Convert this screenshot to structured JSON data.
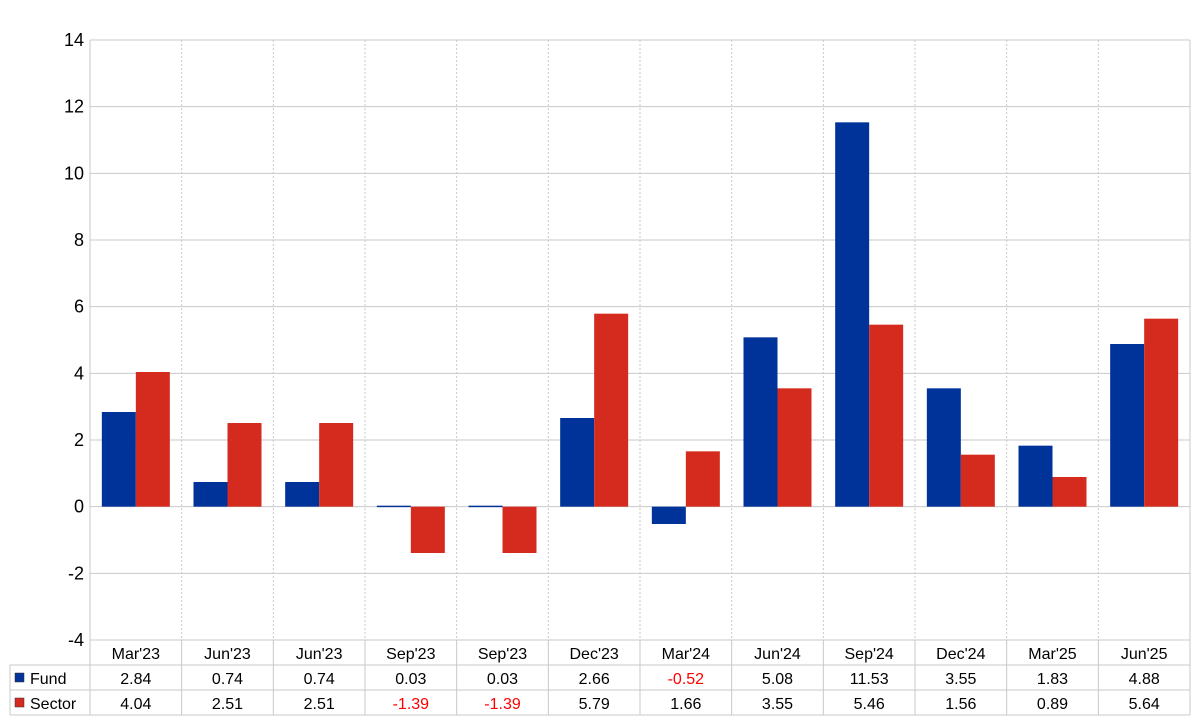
{
  "chart_data": {
    "type": "bar",
    "categories": [
      "Mar'23",
      "Jun'23",
      "Jun'23",
      "Sep'23",
      "Sep'23",
      "Dec'23",
      "Mar'24",
      "Jun'24",
      "Sep'24",
      "Dec'24",
      "Mar'25",
      "Jun'25"
    ],
    "series": [
      {
        "name": "Fund",
        "color": "#003399",
        "values": [
          2.84,
          0.74,
          0.74,
          0.03,
          0.03,
          2.66,
          -0.52,
          5.08,
          11.53,
          3.55,
          1.83,
          4.88
        ],
        "labels": [
          "2.84",
          "0.74",
          "0.74",
          "0.03",
          "0.03",
          "2.66",
          "-0.52",
          "5.08",
          "11.53",
          "3.55",
          "1.83",
          "4.88"
        ]
      },
      {
        "name": "Sector",
        "color": "#D52B1E",
        "values": [
          4.04,
          2.51,
          2.51,
          -1.39,
          -1.39,
          5.79,
          1.66,
          3.55,
          5.46,
          1.56,
          0.89,
          5.64
        ],
        "labels": [
          "4.04",
          "2.51",
          "2.51",
          "-1.39",
          "-1.39",
          "5.79",
          "1.66",
          "3.55",
          "5.46",
          "1.56",
          "0.89",
          "5.64"
        ]
      }
    ],
    "y_ticks": [
      "14",
      "12",
      "10",
      "8",
      "6",
      "4",
      "2",
      "0",
      "-2",
      "-4"
    ],
    "ylim": [
      -4,
      14
    ],
    "negative_value_color": "#FF0000",
    "grid": true,
    "legend": "table-below"
  }
}
